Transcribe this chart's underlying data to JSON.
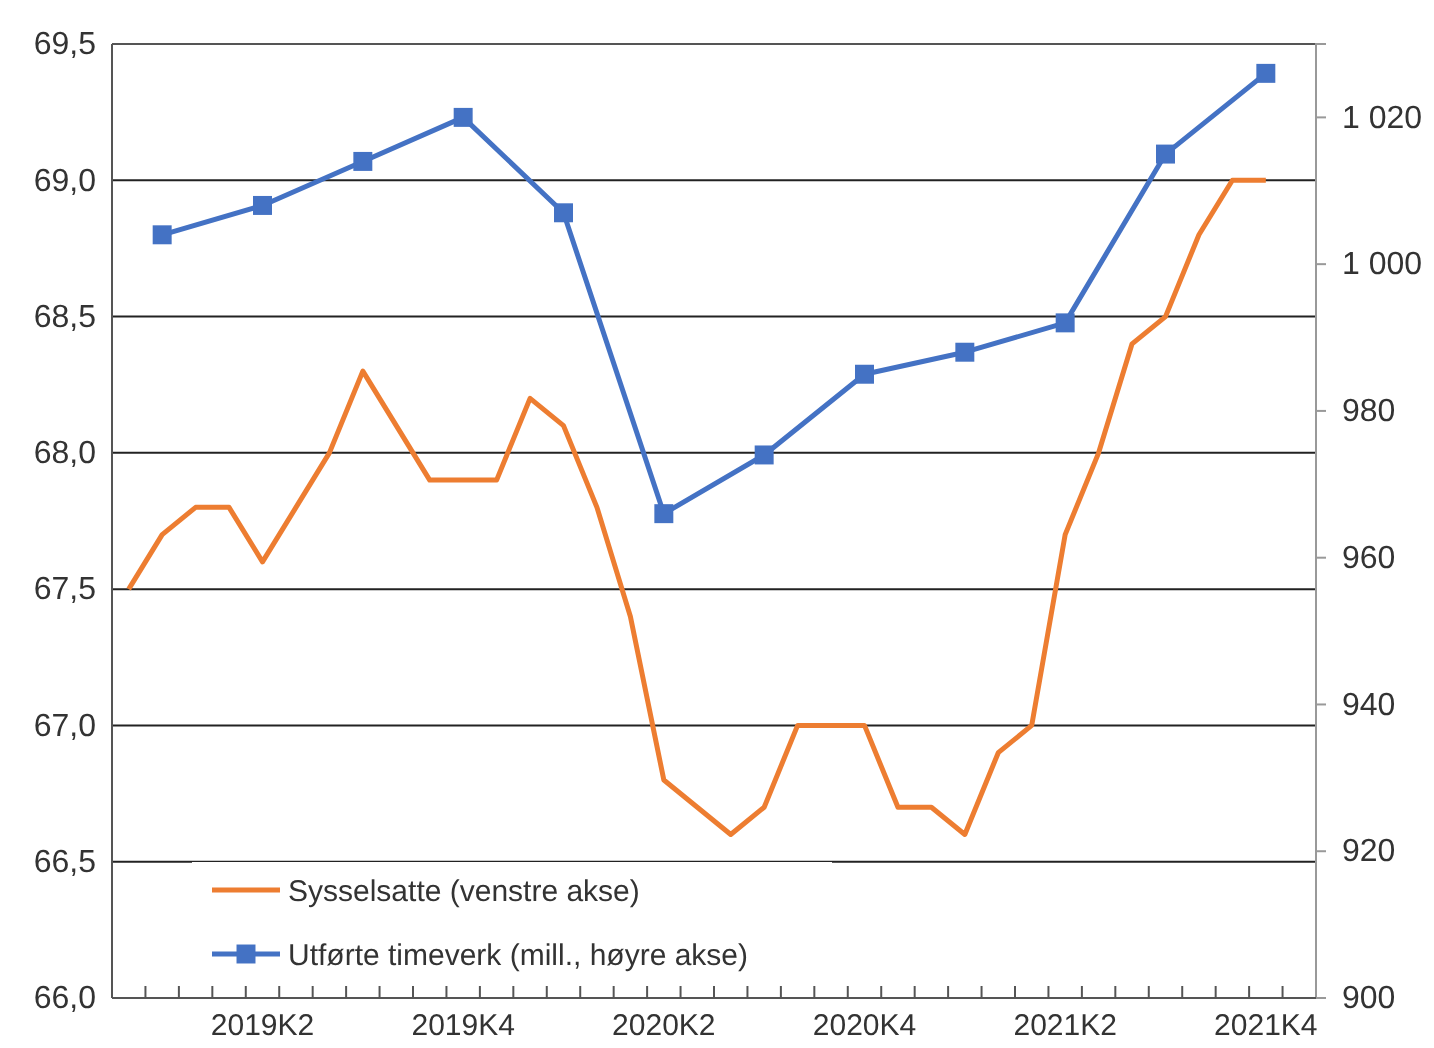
{
  "chart_data": {
    "type": "line",
    "categories": [
      null,
      null,
      null,
      null,
      "2019K2",
      null,
      null,
      null,
      null,
      null,
      "2019K4",
      null,
      null,
      null,
      null,
      null,
      "2020K2",
      null,
      null,
      null,
      null,
      null,
      "2020K4",
      null,
      null,
      null,
      null,
      null,
      "2021K2",
      null,
      null,
      null,
      null,
      null,
      "2021K4",
      null
    ],
    "series": [
      {
        "name": "Sysselsatte (venstre akse)",
        "color": "#ed7d31",
        "marker": "none",
        "values": [
          67.5,
          67.7,
          67.8,
          67.8,
          67.6,
          67.8,
          68.0,
          68.3,
          68.1,
          67.9,
          67.9,
          67.9,
          68.2,
          68.1,
          67.8,
          67.4,
          66.8,
          66.7,
          66.6,
          66.7,
          67.0,
          67.0,
          67.0,
          66.7,
          66.7,
          66.6,
          66.9,
          67.0,
          67.7,
          68.0,
          68.4,
          68.5,
          68.8,
          69.0,
          69.0,
          null
        ]
      },
      {
        "name": "Utførte timeverk (mill., høyre akse)",
        "color": "#4472c4",
        "marker": "square",
        "axis": "y2",
        "values": [
          null,
          1004,
          null,
          null,
          1008,
          null,
          null,
          1014,
          null,
          null,
          1020,
          null,
          null,
          1007,
          null,
          null,
          966,
          null,
          null,
          974,
          null,
          null,
          985,
          null,
          null,
          988,
          null,
          null,
          992,
          null,
          null,
          1015,
          null,
          null,
          1026,
          null
        ]
      }
    ],
    "ylim": [
      66.0,
      69.5
    ],
    "yticks": [
      {
        "value": 66.0,
        "label": "66,0"
      },
      {
        "value": 66.5,
        "label": "66,5"
      },
      {
        "value": 67.0,
        "label": "67,0"
      },
      {
        "value": 67.5,
        "label": "67,5"
      },
      {
        "value": 68.0,
        "label": "68,0"
      },
      {
        "value": 68.5,
        "label": "68,5"
      },
      {
        "value": 69.0,
        "label": "69,0"
      },
      {
        "value": 69.5,
        "label": "69,5"
      }
    ],
    "y2lim": [
      900,
      1030
    ],
    "y2ticks": [
      900,
      920,
      940,
      960,
      980,
      {
        "value": 1000,
        "label": "1 000"
      },
      {
        "value": 1020,
        "label": "1 020"
      }
    ],
    "grid": "y",
    "legend": "bottom left"
  }
}
